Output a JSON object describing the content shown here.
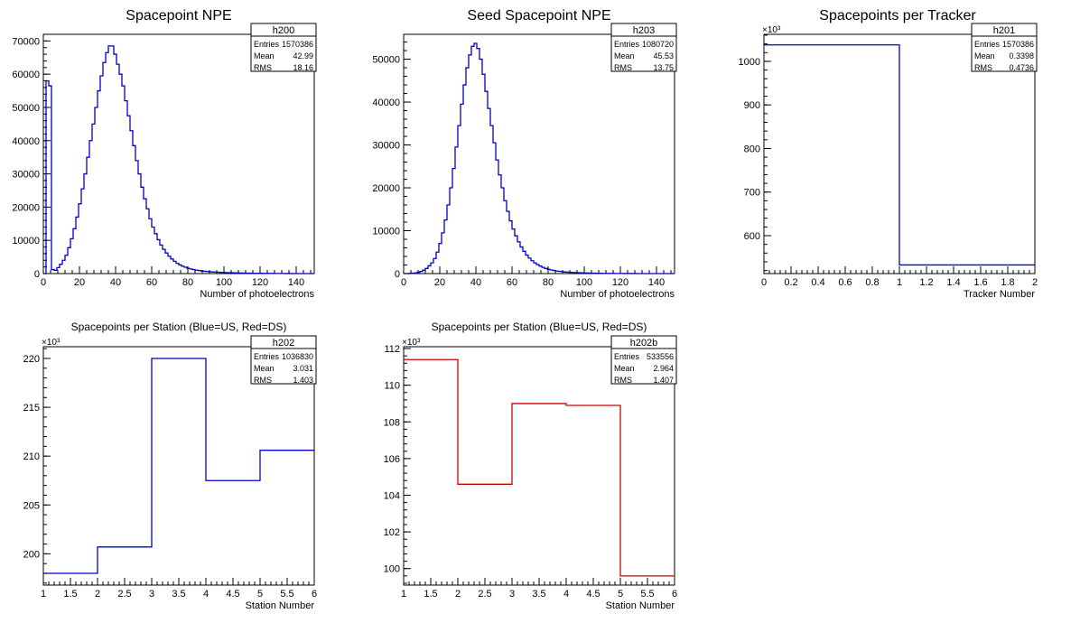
{
  "chart_data": [
    {
      "id": "h200",
      "type": "histogram",
      "title": "Spacepoint NPE",
      "xlabel": "Number of photoelectrons",
      "ylabel": "",
      "xlim": [
        0,
        150
      ],
      "ylim": [
        0,
        72000
      ],
      "xticks": [
        0,
        20,
        40,
        60,
        80,
        100,
        120,
        140
      ],
      "yticks": [
        0,
        10000,
        20000,
        30000,
        40000,
        50000,
        60000,
        70000
      ],
      "yexponent": "",
      "color": "#0000cc",
      "stats": {
        "name": "h200",
        "rows": [
          [
            "Entries",
            "1570386"
          ],
          [
            "Mean",
            "42.99"
          ],
          [
            "RMS",
            "18.16"
          ]
        ]
      },
      "bin_edges_start": 0,
      "bin_width": 1.5,
      "values": [
        0,
        58000,
        56500,
        1200,
        1000,
        1800,
        2800,
        4000,
        5500,
        7800,
        10500,
        13500,
        17000,
        21000,
        25500,
        30000,
        35000,
        40000,
        45000,
        50000,
        55000,
        59500,
        63500,
        66500,
        68500,
        68500,
        66000,
        63000,
        60000,
        56500,
        52000,
        47500,
        43000,
        38500,
        34000,
        30000,
        26000,
        22500,
        19500,
        16500,
        14000,
        12000,
        10200,
        8600,
        7300,
        6200,
        5200,
        4400,
        3700,
        3100,
        2600,
        2200,
        1900,
        1600,
        1400,
        1200,
        1050,
        920,
        800,
        700,
        620,
        550,
        490,
        440,
        400,
        360,
        330,
        300,
        270,
        250,
        230,
        210,
        190,
        170,
        150,
        135,
        120,
        110,
        100,
        90,
        80,
        70,
        60,
        50,
        45,
        40,
        35,
        30,
        25,
        20,
        15,
        12,
        10,
        8,
        6,
        4,
        3,
        2,
        1,
        0
      ]
    },
    {
      "id": "h203",
      "type": "histogram",
      "title": "Seed Spacepoint NPE",
      "xlabel": "Number of photoelectrons",
      "ylabel": "",
      "xlim": [
        0,
        150
      ],
      "ylim": [
        0,
        55800
      ],
      "xticks": [
        0,
        20,
        40,
        60,
        80,
        100,
        120,
        140
      ],
      "yticks": [
        0,
        10000,
        20000,
        30000,
        40000,
        50000
      ],
      "yexponent": "",
      "color": "#0000cc",
      "stats": {
        "name": "h203",
        "rows": [
          [
            "Entries",
            "1080720"
          ],
          [
            "Mean",
            "45.53"
          ],
          [
            "RMS",
            "13.75"
          ]
        ]
      },
      "bin_edges_start": 0,
      "bin_width": 1.5,
      "values": [
        0,
        0,
        50,
        100,
        150,
        300,
        500,
        800,
        1200,
        1800,
        2500,
        3500,
        5000,
        7000,
        9500,
        12500,
        16000,
        20000,
        24500,
        29500,
        34500,
        39500,
        44000,
        48000,
        51000,
        53000,
        53700,
        52500,
        50000,
        46500,
        42500,
        38500,
        34500,
        30500,
        26500,
        23000,
        20000,
        17000,
        14500,
        12300,
        10400,
        8800,
        7400,
        6200,
        5200,
        4300,
        3600,
        3000,
        2500,
        2100,
        1750,
        1450,
        1200,
        1000,
        850,
        720,
        610,
        520,
        440,
        380,
        330,
        290,
        260,
        230,
        200,
        180,
        160,
        140,
        120,
        100,
        90,
        80,
        70,
        60,
        50,
        45,
        40,
        35,
        30,
        25,
        20,
        18,
        15,
        12,
        10,
        8,
        6,
        5,
        4,
        3,
        2,
        2,
        1,
        1,
        0,
        0,
        0,
        0,
        0,
        0
      ]
    },
    {
      "id": "h201",
      "type": "histogram",
      "title": "Spacepoints per Tracker",
      "xlabel": "Tracker Number",
      "ylabel": "",
      "xlim": [
        0,
        2
      ],
      "ylim": [
        513,
        1062
      ],
      "xticks": [
        0,
        0.2,
        0.4,
        0.6,
        0.8,
        1,
        1.2,
        1.4,
        1.6,
        1.8,
        2
      ],
      "yticks": [
        600,
        700,
        800,
        900,
        1000
      ],
      "yexponent": "×10³",
      "color": "#0000cc",
      "stats": {
        "name": "h201",
        "rows": [
          [
            "Entries",
            "1570386"
          ],
          [
            "Mean",
            "0.3398"
          ],
          [
            "RMS",
            "0.4736"
          ]
        ]
      },
      "bin_edges_start": 0,
      "bin_width": 1,
      "values": [
        1037.6,
        532.8
      ]
    },
    {
      "id": "h202",
      "type": "histogram",
      "title": "Spacepoints per Station (Blue=US, Red=DS)",
      "xlabel": "Station Number",
      "ylabel": "",
      "xlim": [
        1,
        6
      ],
      "ylim": [
        196.8,
        221.2
      ],
      "xticks": [
        1,
        1.5,
        2,
        2.5,
        3,
        3.5,
        4,
        4.5,
        5,
        5.5,
        6
      ],
      "yticks": [
        200,
        205,
        210,
        215,
        220
      ],
      "yexponent": "×10³",
      "color": "#0000cc",
      "stats": {
        "name": "h202",
        "rows": [
          [
            "Entries",
            "1036830"
          ],
          [
            "Mean",
            "3.031"
          ],
          [
            "RMS",
            "1.403"
          ]
        ]
      },
      "bin_edges_start": 1,
      "bin_width": 1,
      "values": [
        198.0,
        200.7,
        220.0,
        207.5,
        210.6
      ]
    },
    {
      "id": "h202b",
      "type": "histogram",
      "title": "Spacepoints per Station (Blue=US, Red=DS)",
      "xlabel": "Station Number",
      "ylabel": "",
      "xlim": [
        1,
        6
      ],
      "ylim": [
        99.1,
        112.1
      ],
      "xticks": [
        1,
        1.5,
        2,
        2.5,
        3,
        3.5,
        4,
        4.5,
        5,
        5.5,
        6
      ],
      "yticks": [
        100,
        102,
        104,
        106,
        108,
        110,
        112
      ],
      "yexponent": "×10³",
      "color": "#cc0000",
      "stats": {
        "name": "h202b",
        "rows": [
          [
            "Entries",
            "533556"
          ],
          [
            "Mean",
            "2.964"
          ],
          [
            "RMS",
            "1.407"
          ]
        ]
      },
      "bin_edges_start": 1,
      "bin_width": 1,
      "values": [
        111.4,
        104.6,
        109.0,
        108.9,
        99.6
      ]
    }
  ]
}
